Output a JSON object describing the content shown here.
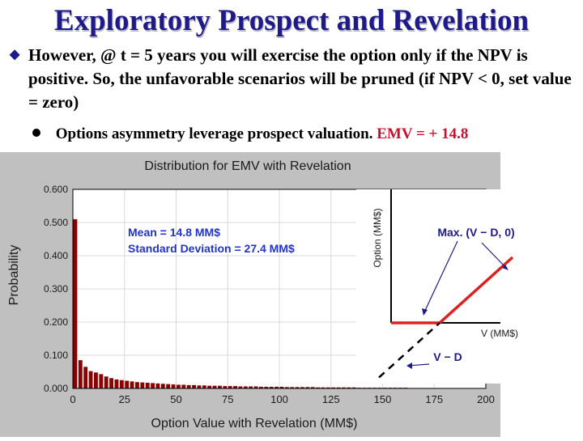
{
  "slide": {
    "title": "Exploratory Prospect and Revelation",
    "bullet1": "However, @ t = 5 years you will exercise the option only if the NPV is positive. So, the unfavorable scenarios will be pruned (if NPV < 0, set value = zero)",
    "bullet2_text": "Options asymmetry leverage prospect valuation.",
    "bullet2_emv": "EMV = + 14.8",
    "colors": {
      "title": "#1f1a8a",
      "emv": "#c8102e",
      "bars": "#8b0000",
      "panel": "#c0c0c0"
    }
  },
  "chart_data": [
    {
      "type": "bar",
      "title": "Distribution for EMV with Revelation",
      "xlabel": "Option Value with Revelation (MM$)",
      "ylabel": "Probability",
      "xlim": [
        0,
        200
      ],
      "ylim": [
        0,
        0.6
      ],
      "x_ticks": [
        0,
        25,
        50,
        75,
        100,
        125,
        150,
        175,
        200
      ],
      "y_ticks": [
        "0.000",
        "0.100",
        "0.200",
        "0.300",
        "0.400",
        "0.500",
        "0.600"
      ],
      "bin_width": 2.5,
      "x": [
        1.25,
        3.75,
        6.25,
        8.75,
        11.25,
        13.75,
        16.25,
        18.75,
        21.25,
        23.75,
        26.25,
        28.75,
        31.25,
        33.75,
        36.25,
        38.75,
        41.25,
        43.75,
        46.25,
        48.75,
        51.25,
        53.75,
        56.25,
        58.75,
        61.25,
        63.75,
        66.25,
        68.75,
        71.25,
        73.75,
        76.25,
        78.75,
        81.25,
        83.75,
        86.25,
        88.75,
        91.25,
        93.75,
        96.25,
        98.75,
        101.25,
        103.75,
        106.25,
        108.75,
        111.25,
        113.75,
        116.25,
        118.75,
        121.25,
        123.75,
        126.25,
        128.75,
        131.25,
        133.75,
        136.25,
        138.75,
        141.25,
        143.75,
        146.25,
        148.75,
        151.25,
        153.75,
        156.25,
        158.75,
        161.25,
        163.75,
        166.25,
        168.75,
        171.25,
        173.75,
        176.25,
        178.75
      ],
      "values": [
        0.51,
        0.085,
        0.065,
        0.052,
        0.048,
        0.043,
        0.036,
        0.031,
        0.027,
        0.025,
        0.023,
        0.021,
        0.019,
        0.018,
        0.017,
        0.016,
        0.015,
        0.014,
        0.013,
        0.012,
        0.011,
        0.011,
        0.01,
        0.01,
        0.009,
        0.009,
        0.008,
        0.008,
        0.008,
        0.007,
        0.007,
        0.007,
        0.006,
        0.006,
        0.006,
        0.006,
        0.005,
        0.005,
        0.005,
        0.005,
        0.005,
        0.004,
        0.004,
        0.004,
        0.004,
        0.004,
        0.004,
        0.003,
        0.003,
        0.003,
        0.003,
        0.003,
        0.003,
        0.003,
        0.003,
        0.002,
        0.002,
        0.002,
        0.002,
        0.002,
        0.002,
        0.002,
        0.002,
        0.002,
        0.002,
        0.001,
        0.001,
        0.001,
        0.001,
        0.001,
        0.001,
        0.001
      ],
      "annotations": [
        "Mean = 14.8 MM$",
        "Standard Deviation = 27.4 MM$"
      ],
      "grid": true
    },
    {
      "type": "line",
      "ylabel": "Option (MM$)",
      "xlabel": "V (MM$)",
      "series": [
        {
          "name": "Max. (V − D, 0)",
          "style": "solid",
          "color": "#e02020",
          "x": [
            0,
            40,
            100
          ],
          "y": [
            0,
            0,
            60
          ]
        },
        {
          "name": "V − D",
          "style": "dashed",
          "color": "#000000",
          "x": [
            -10,
            40
          ],
          "y": [
            -50,
            0
          ]
        }
      ],
      "labels": [
        "Max. (V − D, 0)",
        "V − D"
      ]
    }
  ]
}
